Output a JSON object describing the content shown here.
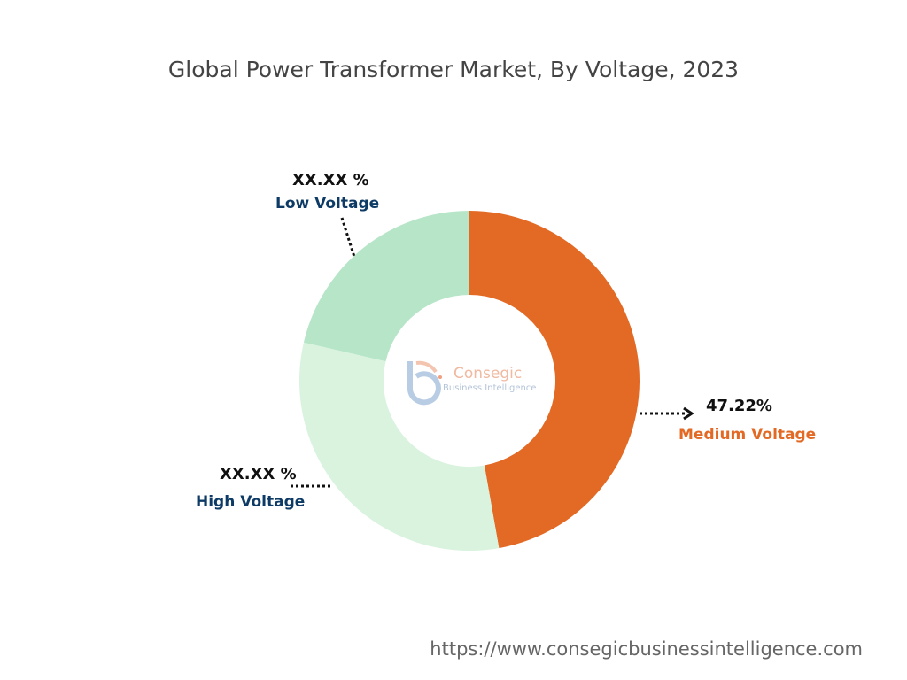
{
  "chart_data": {
    "type": "pie",
    "variant": "donut",
    "title": "Global Power Transformer Market, By Voltage, 2023",
    "categories": [
      "Medium Voltage",
      "High Voltage",
      "Low Voltage"
    ],
    "values": [
      47.22,
      31.4,
      21.38
    ],
    "value_labels": [
      "47.22%",
      "XX.XX %",
      "XX.XX %"
    ],
    "colors": [
      "#e36a25",
      "#d9f3df",
      "#b6e5c8"
    ],
    "label_colors": [
      "#e36a25",
      "#0d3b66",
      "#0d3b66"
    ],
    "start_angle_deg": 0,
    "direction": "clockwise"
  },
  "watermark": {
    "brand": "Consegic",
    "tagline": "Business Intelligence"
  },
  "footer": {
    "url": "https://www.consegicbusinessintelligence.com"
  }
}
